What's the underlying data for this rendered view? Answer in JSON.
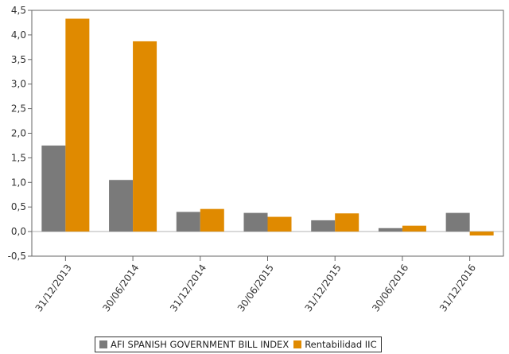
{
  "chart_data": {
    "type": "bar",
    "title": "",
    "xlabel": "",
    "ylabel": "",
    "categories": [
      "31/12/2013",
      "30/06/2014",
      "31/12/2014",
      "30/06/2015",
      "31/12/2015",
      "30/06/2016",
      "31/12/2016"
    ],
    "series": [
      {
        "name": "AFI SPANISH GOVERNMENT BILL INDEX",
        "color": "#7a7a7a",
        "values": [
          1.75,
          1.05,
          0.4,
          0.38,
          0.23,
          0.07,
          0.38
        ]
      },
      {
        "name": "Rentabilidad IIC",
        "color": "#e08a00",
        "values": [
          4.33,
          3.87,
          0.46,
          0.3,
          0.37,
          0.12,
          -0.08
        ]
      }
    ],
    "yticks": [
      "-0,5",
      "0,0",
      "0,5",
      "1,0",
      "1,5",
      "2,0",
      "2,5",
      "3,0",
      "3,5",
      "4,0",
      "4,5"
    ],
    "ylim": [
      -0.5,
      4.5
    ],
    "grid": false,
    "legend": "bottom"
  }
}
